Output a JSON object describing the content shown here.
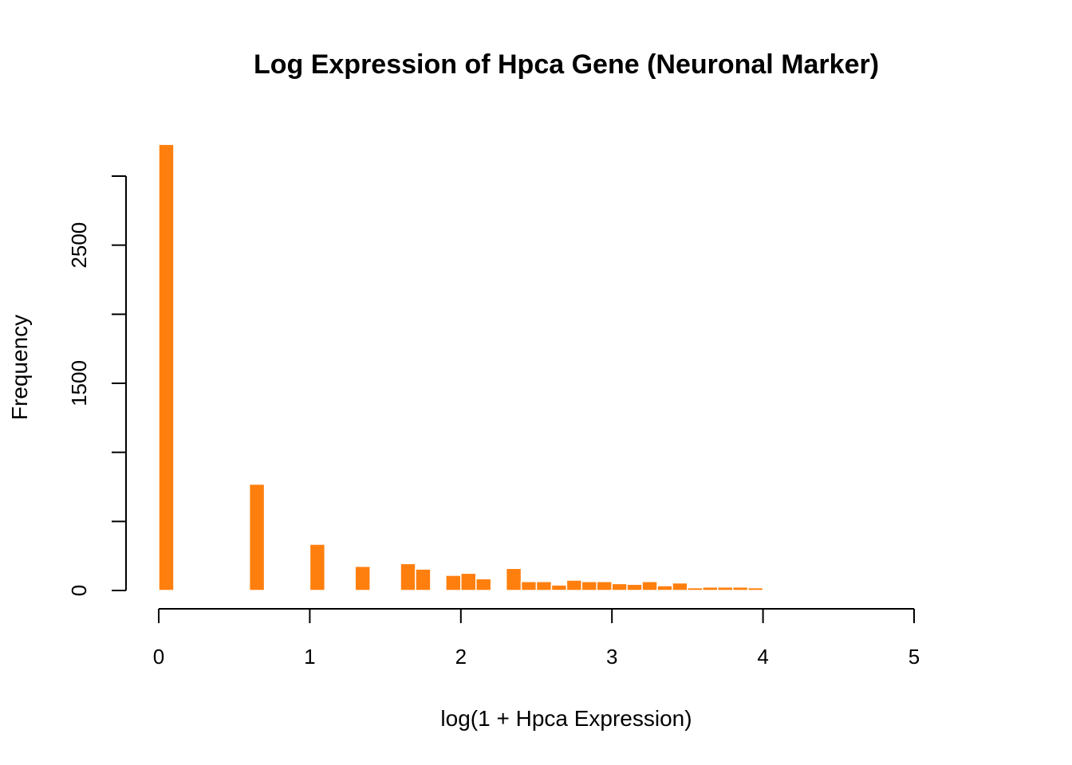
{
  "chart_data": {
    "type": "bar",
    "title": "Log Expression of Hpca Gene (Neuronal Marker)",
    "xlabel": "log(1 + Hpca Expression)",
    "ylabel": "Frequency",
    "xlim": [
      0,
      5
    ],
    "ylim": [
      0,
      3000
    ],
    "x_ticks": [
      0,
      1,
      2,
      3,
      4,
      5
    ],
    "y_ticks": [
      0,
      500,
      1000,
      1500,
      2000,
      2500,
      3000
    ],
    "y_tick_labels": [
      "0",
      "",
      "",
      "1500",
      "",
      "2500",
      ""
    ],
    "bin_width": 0.1,
    "bar_color": "#FF7F0E",
    "bins": [
      {
        "x0": 0.0,
        "value": 3230
      },
      {
        "x0": 0.6,
        "value": 770
      },
      {
        "x0": 1.0,
        "value": 335
      },
      {
        "x0": 1.3,
        "value": 175
      },
      {
        "x0": 1.6,
        "value": 195
      },
      {
        "x0": 1.7,
        "value": 155
      },
      {
        "x0": 1.9,
        "value": 110
      },
      {
        "x0": 2.0,
        "value": 125
      },
      {
        "x0": 2.1,
        "value": 85
      },
      {
        "x0": 2.3,
        "value": 160
      },
      {
        "x0": 2.4,
        "value": 65
      },
      {
        "x0": 2.5,
        "value": 65
      },
      {
        "x0": 2.6,
        "value": 40
      },
      {
        "x0": 2.7,
        "value": 75
      },
      {
        "x0": 2.8,
        "value": 65
      },
      {
        "x0": 2.9,
        "value": 65
      },
      {
        "x0": 3.0,
        "value": 50
      },
      {
        "x0": 3.1,
        "value": 45
      },
      {
        "x0": 3.2,
        "value": 65
      },
      {
        "x0": 3.3,
        "value": 35
      },
      {
        "x0": 3.4,
        "value": 55
      },
      {
        "x0": 3.5,
        "value": 20
      },
      {
        "x0": 3.6,
        "value": 25
      },
      {
        "x0": 3.7,
        "value": 25
      },
      {
        "x0": 3.8,
        "value": 25
      },
      {
        "x0": 3.9,
        "value": 20
      },
      {
        "x0": 4.0,
        "value": 8
      }
    ]
  }
}
